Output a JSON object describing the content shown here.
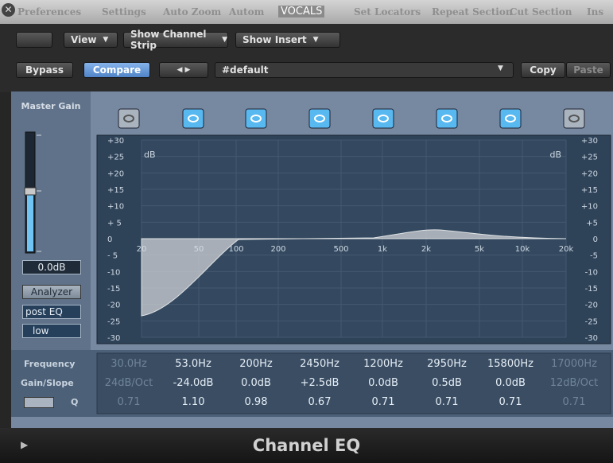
{
  "window": {
    "title": "VOCALS",
    "menu": [
      "Preferences",
      "Settings",
      "Auto Zoom",
      "Autom",
      "Set Locators",
      "Repeat Section",
      "Cut Section",
      "Ins"
    ]
  },
  "toolbar": {
    "view": "View",
    "channel_strip": "Show Channel Strip",
    "insert": "Show Insert",
    "bypass": "Bypass",
    "compare": "Compare",
    "preset": "#default",
    "copy": "Copy",
    "paste": "Paste"
  },
  "master": {
    "label": "Master Gain",
    "value": "0.0dB",
    "analyzer": "Analyzer",
    "mode": "post EQ",
    "resolution": "low"
  },
  "graph": {
    "unit": "dB",
    "db_labels_left": [
      "+30",
      "+25",
      "+20",
      "+15",
      "+10",
      "+ 5",
      "0",
      "- 5",
      "-10",
      "-15",
      "-20",
      "-25",
      "-30"
    ],
    "db_labels_right": [
      "+30",
      "+25",
      "+20",
      "+15",
      "+10",
      "+5",
      "0",
      "-5",
      "-10",
      "-15",
      "-20",
      "-25",
      "-30"
    ],
    "freq_labels": [
      "20",
      "50",
      "100",
      "200",
      "500",
      "1k",
      "2k",
      "5k",
      "10k",
      "20k"
    ]
  },
  "params": {
    "labels": [
      "Frequency",
      "Gain/Slope",
      "Q"
    ],
    "bands": [
      {
        "frequency": "30.0Hz",
        "gain": "24dB/Oct",
        "q": "0.71"
      },
      {
        "frequency": "53.0Hz",
        "gain": "-24.0dB",
        "q": "1.10"
      },
      {
        "frequency": "200Hz",
        "gain": "0.0dB",
        "q": "0.98"
      },
      {
        "frequency": "2450Hz",
        "gain": "+2.5dB",
        "q": "0.67"
      },
      {
        "frequency": "1200Hz",
        "gain": "0.0dB",
        "q": "0.71"
      },
      {
        "frequency": "2950Hz",
        "gain": "0.5dB",
        "q": "0.71"
      },
      {
        "frequency": "15800Hz",
        "gain": "0.0dB",
        "q": "0.71"
      },
      {
        "frequency": "17000Hz",
        "gain": "12dB/Oct",
        "q": "0.71"
      }
    ]
  },
  "footer": {
    "title": "Channel EQ"
  }
}
